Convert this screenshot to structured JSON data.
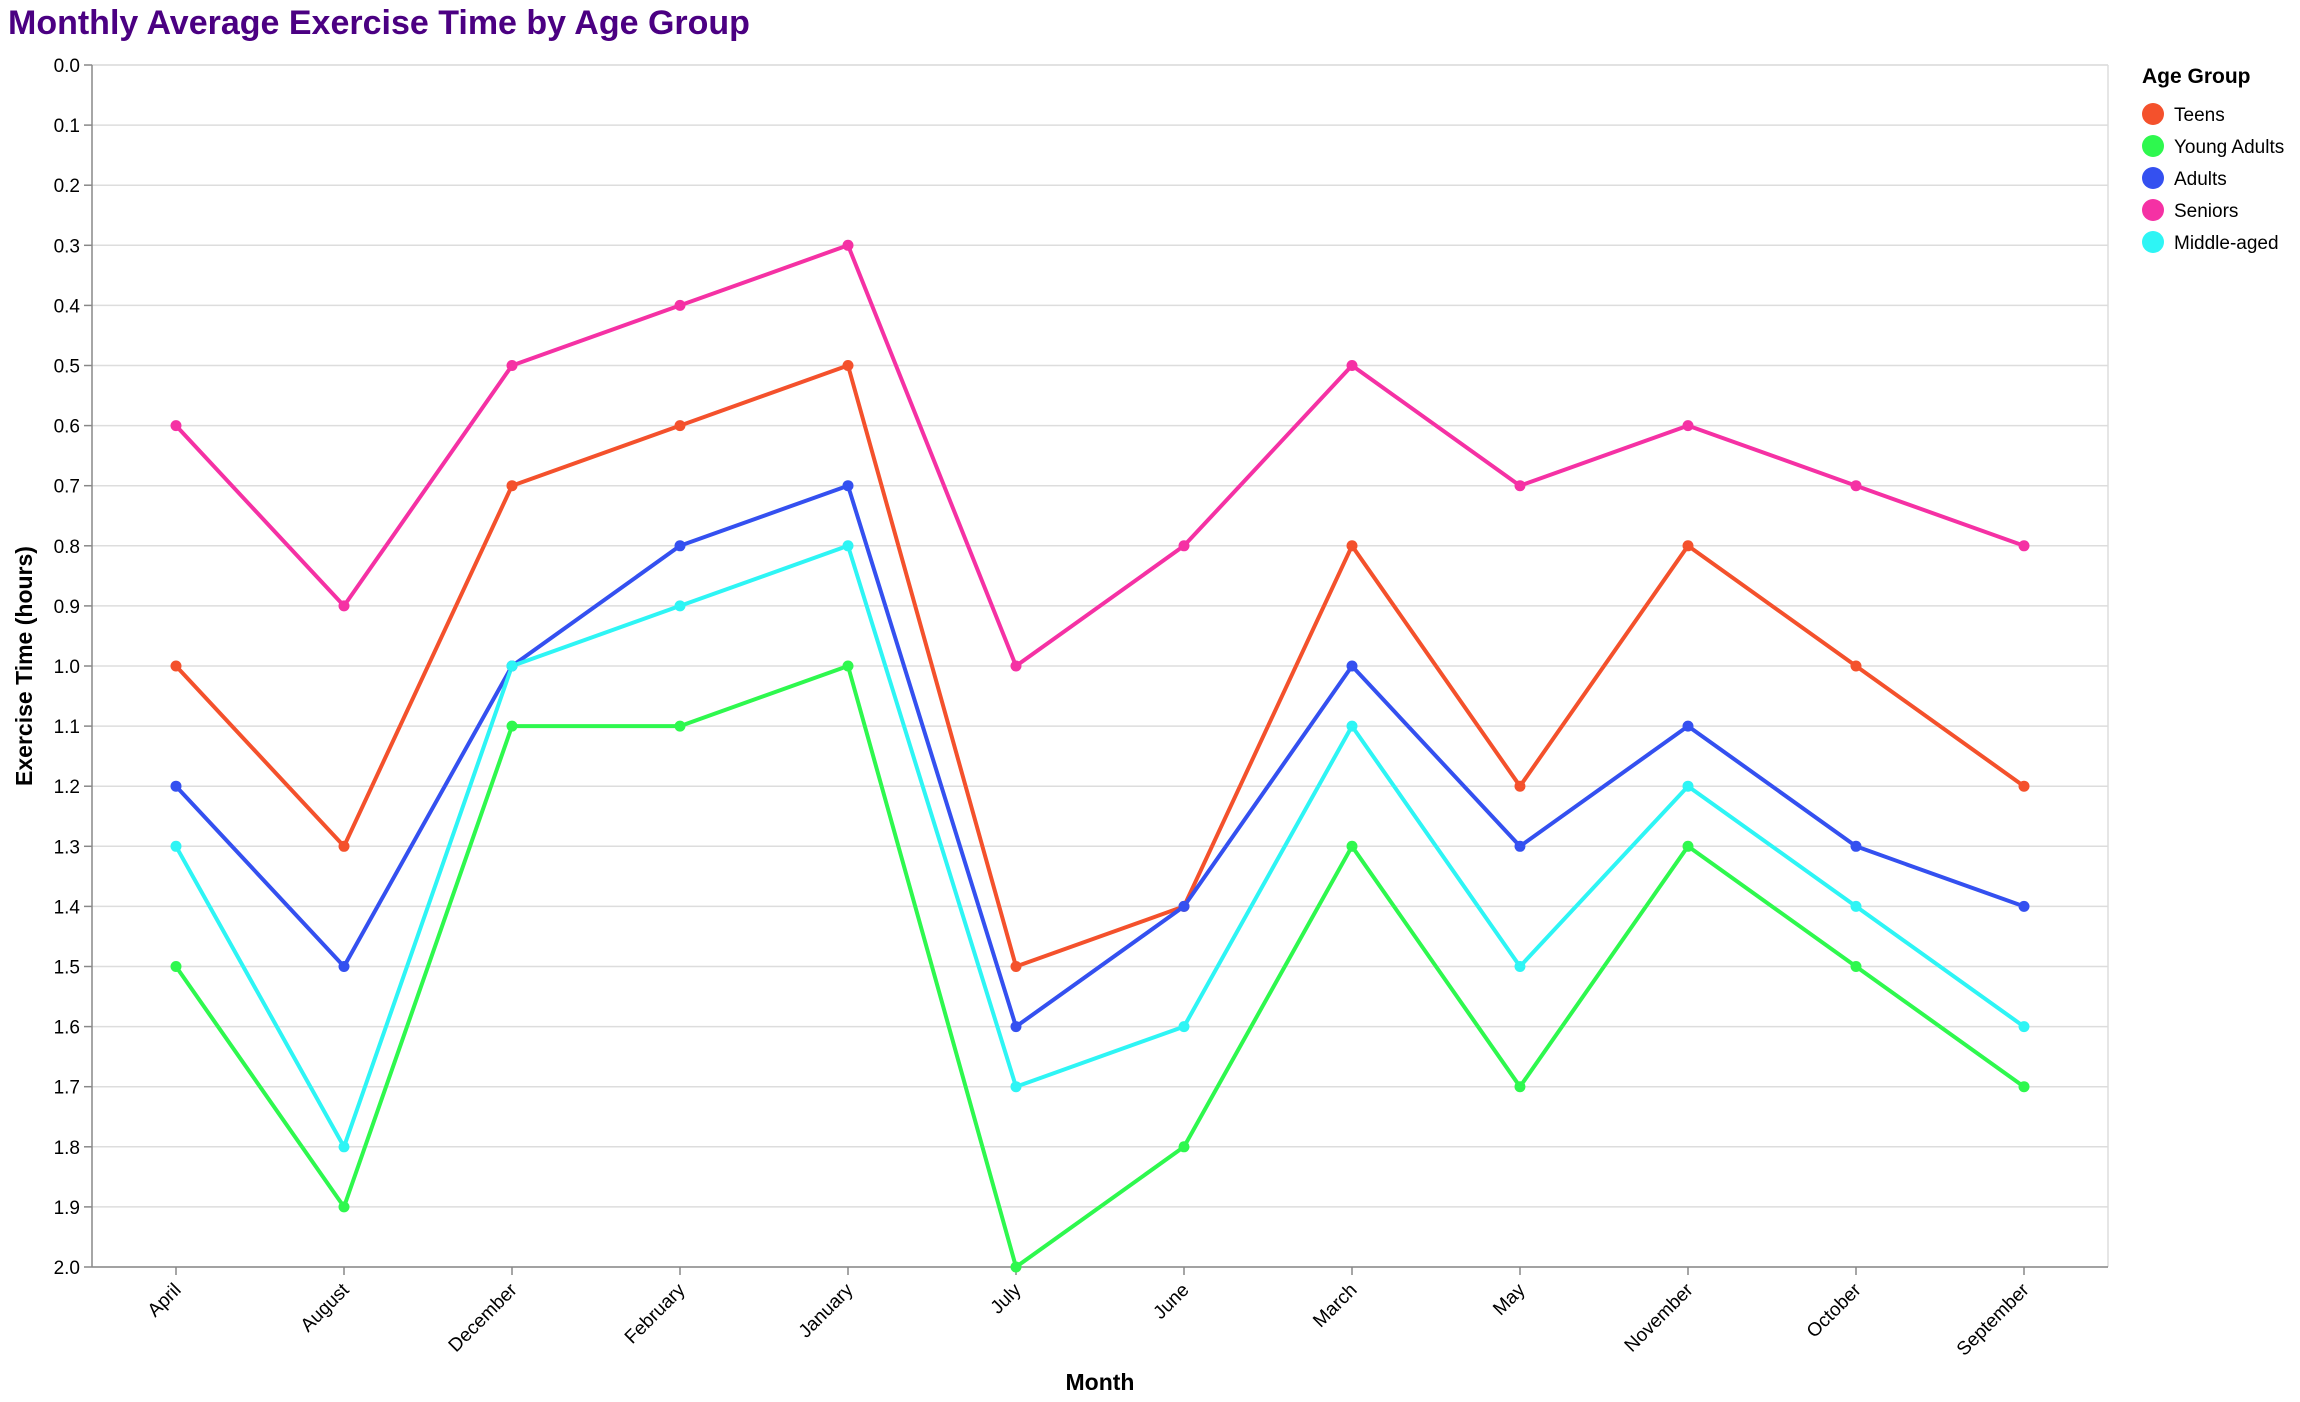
{
  "chart_data": {
    "type": "line",
    "title": "Monthly Average Exercise Time by Age Group",
    "xlabel": "Month",
    "ylabel": "Exercise Time (hours)",
    "ylim": [
      0,
      2
    ],
    "y_reversed": true,
    "y_ticks": [
      "0.0",
      "0.1",
      "0.2",
      "0.3",
      "0.4",
      "0.5",
      "0.6",
      "0.7",
      "0.8",
      "0.9",
      "1.0",
      "1.1",
      "1.2",
      "1.3",
      "1.4",
      "1.5",
      "1.6",
      "1.7",
      "1.8",
      "1.9",
      "2.0"
    ],
    "grid": "horizontal",
    "legend_title": "Age Group",
    "legend_position": "top-right",
    "categories": [
      "April",
      "August",
      "December",
      "February",
      "January",
      "July",
      "June",
      "March",
      "May",
      "November",
      "October",
      "September"
    ],
    "series": [
      {
        "name": "Teens",
        "color": "#f4512c",
        "values": [
          1.0,
          1.3,
          0.7,
          0.6,
          0.5,
          1.5,
          1.4,
          0.8,
          1.2,
          0.8,
          1.0,
          1.2
        ]
      },
      {
        "name": "Young Adults",
        "color": "#2ef84e",
        "values": [
          1.5,
          1.9,
          1.1,
          1.1,
          1.0,
          2.0,
          1.8,
          1.3,
          1.7,
          1.3,
          1.5,
          1.7
        ]
      },
      {
        "name": "Adults",
        "color": "#3450f0",
        "values": [
          1.2,
          1.5,
          1.0,
          0.8,
          0.7,
          1.6,
          1.4,
          1.0,
          1.3,
          1.1,
          1.3,
          1.4
        ]
      },
      {
        "name": "Seniors",
        "color": "#f531a4",
        "values": [
          0.6,
          0.9,
          0.5,
          0.4,
          0.3,
          1.0,
          0.8,
          0.5,
          0.7,
          0.6,
          0.7,
          0.8
        ]
      },
      {
        "name": "Middle-aged",
        "color": "#2ef5f5",
        "values": [
          1.3,
          1.8,
          1.0,
          0.9,
          0.8,
          1.7,
          1.6,
          1.1,
          1.5,
          1.2,
          1.4,
          1.6
        ]
      }
    ]
  }
}
